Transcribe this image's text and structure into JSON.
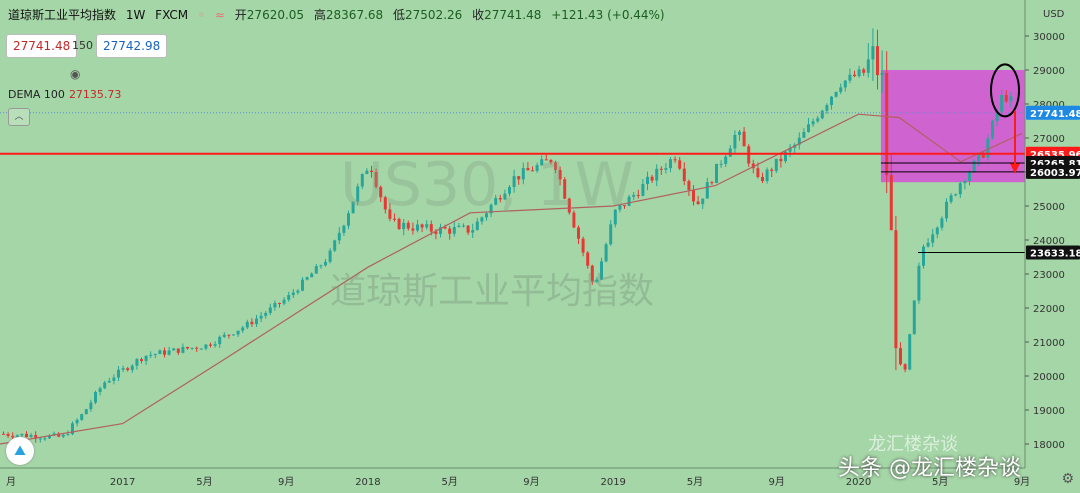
{
  "header": {
    "title": "道琼斯工业平均指数",
    "interval": "1W",
    "source": "FXCM",
    "open_label": "开",
    "open": "27620.05",
    "high_label": "高",
    "high": "28367.68",
    "low_label": "低",
    "low": "27502.26",
    "close_label": "收",
    "close": "27741.48",
    "change": "+121.43 (+0.44%)"
  },
  "quote": {
    "bid": "27741.48",
    "spread": "150",
    "ask": "27742.98"
  },
  "indicator": {
    "name": "DEMA 100",
    "value": "27135.73"
  },
  "watermark": {
    "symbol": "US30, 1W",
    "name": "道琼斯工业平均指数"
  },
  "wechat": {
    "account": "头条 @龙汇楼杂谈",
    "faded": "龙汇楼杂谈"
  },
  "colors": {
    "background": "#a5d6a7",
    "up": "#26a69a",
    "down": "#e53935",
    "dema": "#b06060",
    "zone": "#d64fd6",
    "hline_red": "#ff1a1a",
    "hline_black": "#000000",
    "axis_blue": "#1e88e5"
  },
  "chart_data": {
    "type": "candlestick",
    "symbol": "US30",
    "interval": "1W",
    "currency": "USD",
    "ylim": [
      17000,
      31000
    ],
    "y_ticks": [
      17000,
      18000,
      19000,
      20000,
      21000,
      22000,
      23000,
      24000,
      25000,
      26000,
      27000,
      28000,
      29000,
      30000,
      31000
    ],
    "x_ticks": [
      "月",
      "2017",
      "5月",
      "9月",
      "2018",
      "5月",
      "9月",
      "2019",
      "5月",
      "9月",
      "2020",
      "5月",
      "9月"
    ],
    "price_labels": [
      {
        "value": 27741.48,
        "label": "27741.48",
        "style": "current"
      },
      {
        "value": 26535.96,
        "label": "26535.96",
        "style": "red"
      },
      {
        "value": 26265.81,
        "label": "26265.81",
        "style": "dark"
      },
      {
        "value": 26003.97,
        "label": "26003.97",
        "style": "dark"
      },
      {
        "value": 23633.18,
        "label": "23633.18",
        "style": "dark"
      }
    ],
    "close_path": [
      [
        "2016-07",
        18300
      ],
      [
        "2016-10",
        18200
      ],
      [
        "2016-11",
        18900
      ],
      [
        "2016-12",
        19800
      ],
      [
        "2017-02",
        20600
      ],
      [
        "2017-03",
        20700
      ],
      [
        "2017-05",
        20900
      ],
      [
        "2017-07",
        21500
      ],
      [
        "2017-09",
        22300
      ],
      [
        "2017-11",
        23500
      ],
      [
        "2018-01",
        26300
      ],
      [
        "2018-02",
        24500
      ],
      [
        "2018-04",
        24300
      ],
      [
        "2018-06",
        24300
      ],
      [
        "2018-08",
        25800
      ],
      [
        "2018-10",
        26400
      ],
      [
        "2018-11",
        24500
      ],
      [
        "2018-12",
        22600
      ],
      [
        "2019-01",
        24800
      ],
      [
        "2019-04",
        26500
      ],
      [
        "2019-05",
        25000
      ],
      [
        "2019-07",
        27200
      ],
      [
        "2019-08",
        25700
      ],
      [
        "2019-10",
        26900
      ],
      [
        "2019-12",
        28600
      ],
      [
        "2020-02",
        29200
      ],
      [
        "2020-03",
        19200
      ],
      [
        "2020-04",
        23700
      ],
      [
        "2020-06",
        25800
      ],
      [
        "2020-07",
        26500
      ],
      [
        "2020-08",
        28300
      ],
      [
        "2020-09",
        27741
      ]
    ],
    "dema_path": [
      [
        "2016-07",
        18000
      ],
      [
        "2017-01",
        18600
      ],
      [
        "2017-06",
        20500
      ],
      [
        "2018-01",
        23200
      ],
      [
        "2018-06",
        24800
      ],
      [
        "2019-01",
        25000
      ],
      [
        "2019-06",
        25600
      ],
      [
        "2020-01",
        27700
      ],
      [
        "2020-03",
        27600
      ],
      [
        "2020-06",
        26300
      ],
      [
        "2020-09",
        27135
      ]
    ],
    "lines": [
      {
        "kind": "hline",
        "value": 26535.96,
        "color": "#ff1a1a"
      },
      {
        "kind": "hline",
        "value": 26265.81,
        "color": "#000000"
      },
      {
        "kind": "hline",
        "value": 26003.97,
        "color": "#000000"
      },
      {
        "kind": "hline",
        "value": 23633.18,
        "color": "#000000"
      }
    ],
    "zone": {
      "from": "2020-02",
      "to": "2020-09",
      "top": 29000,
      "bottom": 25700
    }
  }
}
